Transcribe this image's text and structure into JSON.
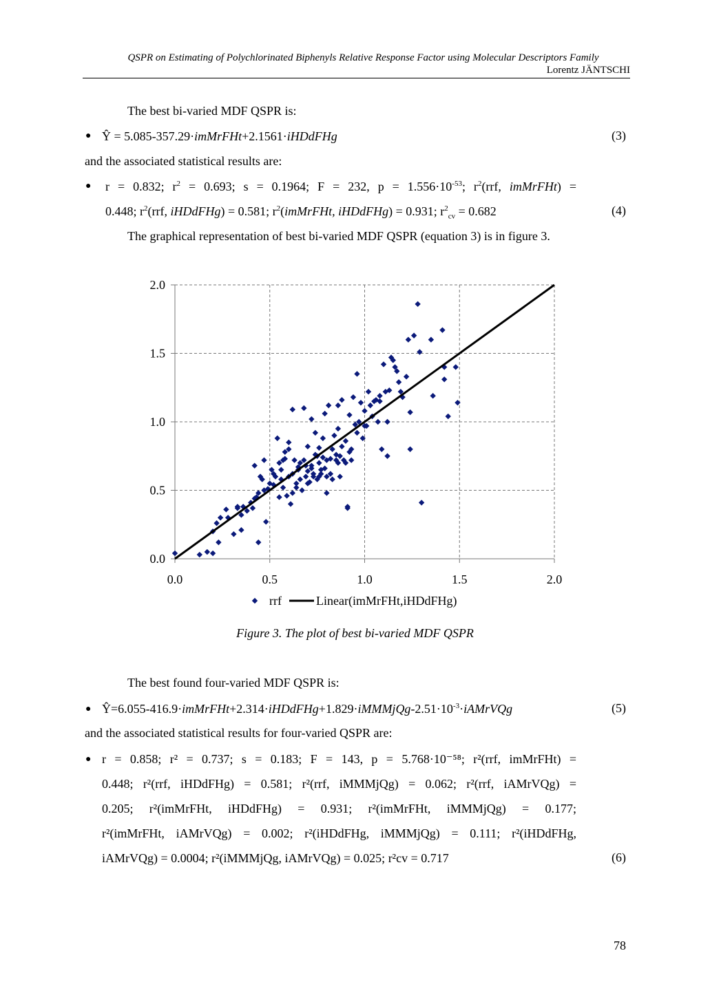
{
  "header": {
    "title": "QSPR on Estimating of Polychlorinated Biphenyls Relative Response Factor using Molecular Descriptors Family",
    "author": "Lorentz JÄNTSCHI"
  },
  "text": {
    "p1": "The best bi-varied MDF QSPR is:",
    "eq3_pre": "Ŷ = 5.085-357.29·",
    "eq3_v1": "imMrFHt",
    "eq3_mid": "+2.1561·",
    "eq3_v2": "iHDdFHg",
    "eq3_no": "(3)",
    "p2": "and the associated statistical results are:",
    "s4_l1a": "r = 0.832; r",
    "s4_l1b": " = 0.693; s = 0.1964; F = 232, p = 1.556·10",
    "s4_exp": "-53",
    "s4_l1c": "; r",
    "s4_l1d": "(rrf, ",
    "s4_v1": "imMrFHt",
    "s4_l1e": ") =",
    "s4_l2a": "0.448; r",
    "s4_l2b": "(rrf, ",
    "s4_v2": "iHDdFHg",
    "s4_l2c": ") = 0.581; r",
    "s4_l2d": "(",
    "s4_v3": "imMrFHt, iHDdFHg",
    "s4_l2e": ") = 0.931; r",
    "s4_cv": "cv",
    "s4_l2f": " = 0.682",
    "eq4_no": "(4)",
    "p3": "The graphical representation of best bi-varied MDF QSPR (equation 3) is in figure 3.",
    "caption": "Figure 3. The plot of best bi-varied MDF QSPR",
    "p4": "The best found four-varied MDF QSPR is:",
    "eq5_a": "Ŷ=6.055-416.9·",
    "eq5_v1": "imMrFHt",
    "eq5_b": "+2.314·",
    "eq5_v2": "iHDdFHg",
    "eq5_c": "+1.829·",
    "eq5_v3": "iMMMjQg",
    "eq5_d": "-2.51·10",
    "eq5_exp": "-3",
    "eq5_e": "·",
    "eq5_v4": "iAMrVQg",
    "eq5_no": "(5)",
    "p5": "and the associated statistical results for four-varied QSPR are:",
    "eq6_no": "(6)",
    "sq": "2",
    "l6_1": "r = 0.858; r² = 0.737; s = 0.183; F = 143, p = 5.768·10⁻⁵⁸; r²(rrf, imMrFHt) =",
    "l6_2": "0.448; r²(rrf, iHDdFHg) = 0.581; r²(rrf, iMMMjQg) = 0.062; r²(rrf, iAMrVQg) =",
    "l6_3": "0.205; r²(imMrFHt, iHDdFHg) = 0.931; r²(imMrFHt, iMMMjQg) = 0.177;",
    "l6_4": "r²(imMrFHt, iAMrVQg) = 0.002; r²(iHDdFHg, iMMMjQg) = 0.111; r²(iHDdFHg,",
    "l6_5": "iAMrVQg) = 0.0004; r²(iMMMjQg, iAMrVQg) = 0.025; r²cv = 0.717"
  },
  "page_number": "78",
  "chart_data": {
    "type": "scatter",
    "xlim": [
      0,
      2
    ],
    "ylim": [
      0,
      2
    ],
    "x_ticks": [
      "0.0",
      "0.5",
      "1.0",
      "1.5",
      "2.0"
    ],
    "y_ticks": [
      "0.0",
      "0.5",
      "1.0",
      "1.5",
      "2.0"
    ],
    "grid": "dashed",
    "legend_position": "bottom",
    "marker_color": "#0b1a7a",
    "line_color": "#000000",
    "series": [
      {
        "name": "rrf",
        "kind": "scatter",
        "points": [
          [
            0.0,
            0.04
          ],
          [
            0.13,
            0.03
          ],
          [
            0.17,
            0.05
          ],
          [
            0.2,
            0.04
          ],
          [
            0.2,
            0.2
          ],
          [
            0.22,
            0.26
          ],
          [
            0.23,
            0.12
          ],
          [
            0.24,
            0.3
          ],
          [
            0.27,
            0.36
          ],
          [
            0.28,
            0.3
          ],
          [
            0.31,
            0.18
          ],
          [
            0.33,
            0.37
          ],
          [
            0.33,
            0.38
          ],
          [
            0.35,
            0.32
          ],
          [
            0.35,
            0.21
          ],
          [
            0.36,
            0.38
          ],
          [
            0.38,
            0.35
          ],
          [
            0.4,
            0.41
          ],
          [
            0.41,
            0.37
          ],
          [
            0.42,
            0.44
          ],
          [
            0.42,
            0.68
          ],
          [
            0.43,
            0.45
          ],
          [
            0.44,
            0.48
          ],
          [
            0.44,
            0.12
          ],
          [
            0.45,
            0.6
          ],
          [
            0.46,
            0.58
          ],
          [
            0.47,
            0.72
          ],
          [
            0.48,
            0.27
          ],
          [
            0.49,
            0.51
          ],
          [
            0.5,
            0.55
          ],
          [
            0.51,
            0.65
          ],
          [
            0.52,
            0.54
          ],
          [
            0.53,
            0.6
          ],
          [
            0.54,
            0.88
          ],
          [
            0.55,
            0.45
          ],
          [
            0.56,
            0.58
          ],
          [
            0.57,
            0.72
          ],
          [
            0.57,
            0.52
          ],
          [
            0.58,
            0.78
          ],
          [
            0.59,
            0.46
          ],
          [
            0.6,
            0.85
          ],
          [
            0.6,
            0.6
          ],
          [
            0.61,
            0.4
          ],
          [
            0.62,
            0.62
          ],
          [
            0.62,
            0.48
          ],
          [
            0.63,
            0.72
          ],
          [
            0.64,
            0.55
          ],
          [
            0.65,
            0.65
          ],
          [
            0.66,
            0.58
          ],
          [
            0.67,
            0.5
          ],
          [
            0.68,
            0.72
          ],
          [
            0.69,
            0.6
          ],
          [
            0.7,
            0.64
          ],
          [
            0.7,
            0.82
          ],
          [
            0.71,
            0.56
          ],
          [
            0.72,
            0.68
          ],
          [
            0.72,
            1.02
          ],
          [
            0.73,
            0.62
          ],
          [
            0.74,
            0.76
          ],
          [
            0.75,
            0.58
          ],
          [
            0.76,
            0.7
          ],
          [
            0.76,
            0.81
          ],
          [
            0.77,
            0.62
          ],
          [
            0.78,
            0.74
          ],
          [
            0.78,
            0.88
          ],
          [
            0.79,
            0.66
          ],
          [
            0.8,
            0.48
          ],
          [
            0.8,
            0.72
          ],
          [
            0.81,
            1.12
          ],
          [
            0.82,
            0.62
          ],
          [
            0.83,
            0.8
          ],
          [
            0.84,
            0.9
          ],
          [
            0.85,
            0.76
          ],
          [
            0.86,
            0.7
          ],
          [
            0.86,
            0.95
          ],
          [
            0.87,
            0.6
          ],
          [
            0.88,
            0.82
          ],
          [
            0.88,
            1.16
          ],
          [
            0.89,
            0.72
          ],
          [
            0.9,
            0.86
          ],
          [
            0.91,
            0.38
          ],
          [
            0.91,
            0.37
          ],
          [
            0.92,
            1.05
          ],
          [
            0.93,
            0.8
          ],
          [
            0.93,
            0.72
          ],
          [
            0.94,
            1.18
          ],
          [
            0.95,
            0.98
          ],
          [
            0.96,
            1.35
          ],
          [
            0.96,
            0.92
          ],
          [
            0.97,
            1.0
          ],
          [
            0.98,
            1.14
          ],
          [
            0.99,
            0.88
          ],
          [
            1.0,
            1.08
          ],
          [
            1.01,
            0.97
          ],
          [
            1.02,
            1.22
          ],
          [
            1.03,
            1.12
          ],
          [
            1.04,
            1.04
          ],
          [
            1.05,
            1.15
          ],
          [
            1.07,
            1.0
          ],
          [
            1.08,
            1.19
          ],
          [
            1.08,
            1.15
          ],
          [
            1.09,
            0.8
          ],
          [
            1.1,
            1.42
          ],
          [
            1.11,
            1.22
          ],
          [
            1.12,
            0.75
          ],
          [
            1.13,
            1.23
          ],
          [
            1.14,
            1.47
          ],
          [
            1.15,
            1.45
          ],
          [
            1.16,
            1.4
          ],
          [
            1.17,
            1.37
          ],
          [
            1.18,
            1.29
          ],
          [
            1.19,
            1.22
          ],
          [
            1.2,
            1.18
          ],
          [
            1.22,
            1.33
          ],
          [
            1.23,
            1.6
          ],
          [
            1.24,
            0.8
          ],
          [
            1.24,
            1.07
          ],
          [
            1.26,
            1.63
          ],
          [
            1.28,
            1.86
          ],
          [
            1.29,
            1.51
          ],
          [
            1.3,
            0.41
          ],
          [
            1.35,
            1.6
          ],
          [
            1.36,
            1.19
          ],
          [
            1.41,
            1.67
          ],
          [
            1.42,
            1.4
          ],
          [
            1.42,
            1.31
          ],
          [
            1.44,
            1.04
          ],
          [
            1.48,
            1.4
          ],
          [
            1.49,
            1.14
          ],
          [
            0.82,
            0.73
          ],
          [
            0.85,
            0.72
          ],
          [
            0.58,
            0.73
          ],
          [
            0.6,
            0.8
          ],
          [
            0.62,
            1.09
          ],
          [
            0.65,
            0.67
          ],
          [
            0.7,
            0.55
          ],
          [
            0.73,
            0.6
          ],
          [
            0.75,
            0.75
          ],
          [
            0.77,
            0.65
          ],
          [
            0.8,
            0.6
          ],
          [
            0.83,
            0.58
          ],
          [
            0.87,
            0.75
          ],
          [
            0.9,
            0.7
          ],
          [
            0.92,
            0.78
          ],
          [
            0.68,
            1.1
          ],
          [
            0.74,
            0.92
          ],
          [
            0.79,
            1.06
          ],
          [
            0.86,
            1.12
          ],
          [
            1.0,
            0.97
          ],
          [
            1.06,
            1.16
          ],
          [
            1.12,
            1.0
          ],
          [
            0.55,
            0.7
          ],
          [
            0.47,
            0.5
          ],
          [
            0.52,
            0.62
          ],
          [
            0.56,
            0.65
          ],
          [
            0.64,
            0.52
          ],
          [
            0.66,
            0.7
          ],
          [
            0.69,
            0.68
          ],
          [
            0.72,
            0.66
          ],
          [
            0.76,
            0.6
          ]
        ]
      },
      {
        "name": "Linear(imMrFHt,iHDdFHg)",
        "kind": "line",
        "points": [
          [
            0,
            0
          ],
          [
            2,
            2
          ]
        ]
      }
    ]
  }
}
